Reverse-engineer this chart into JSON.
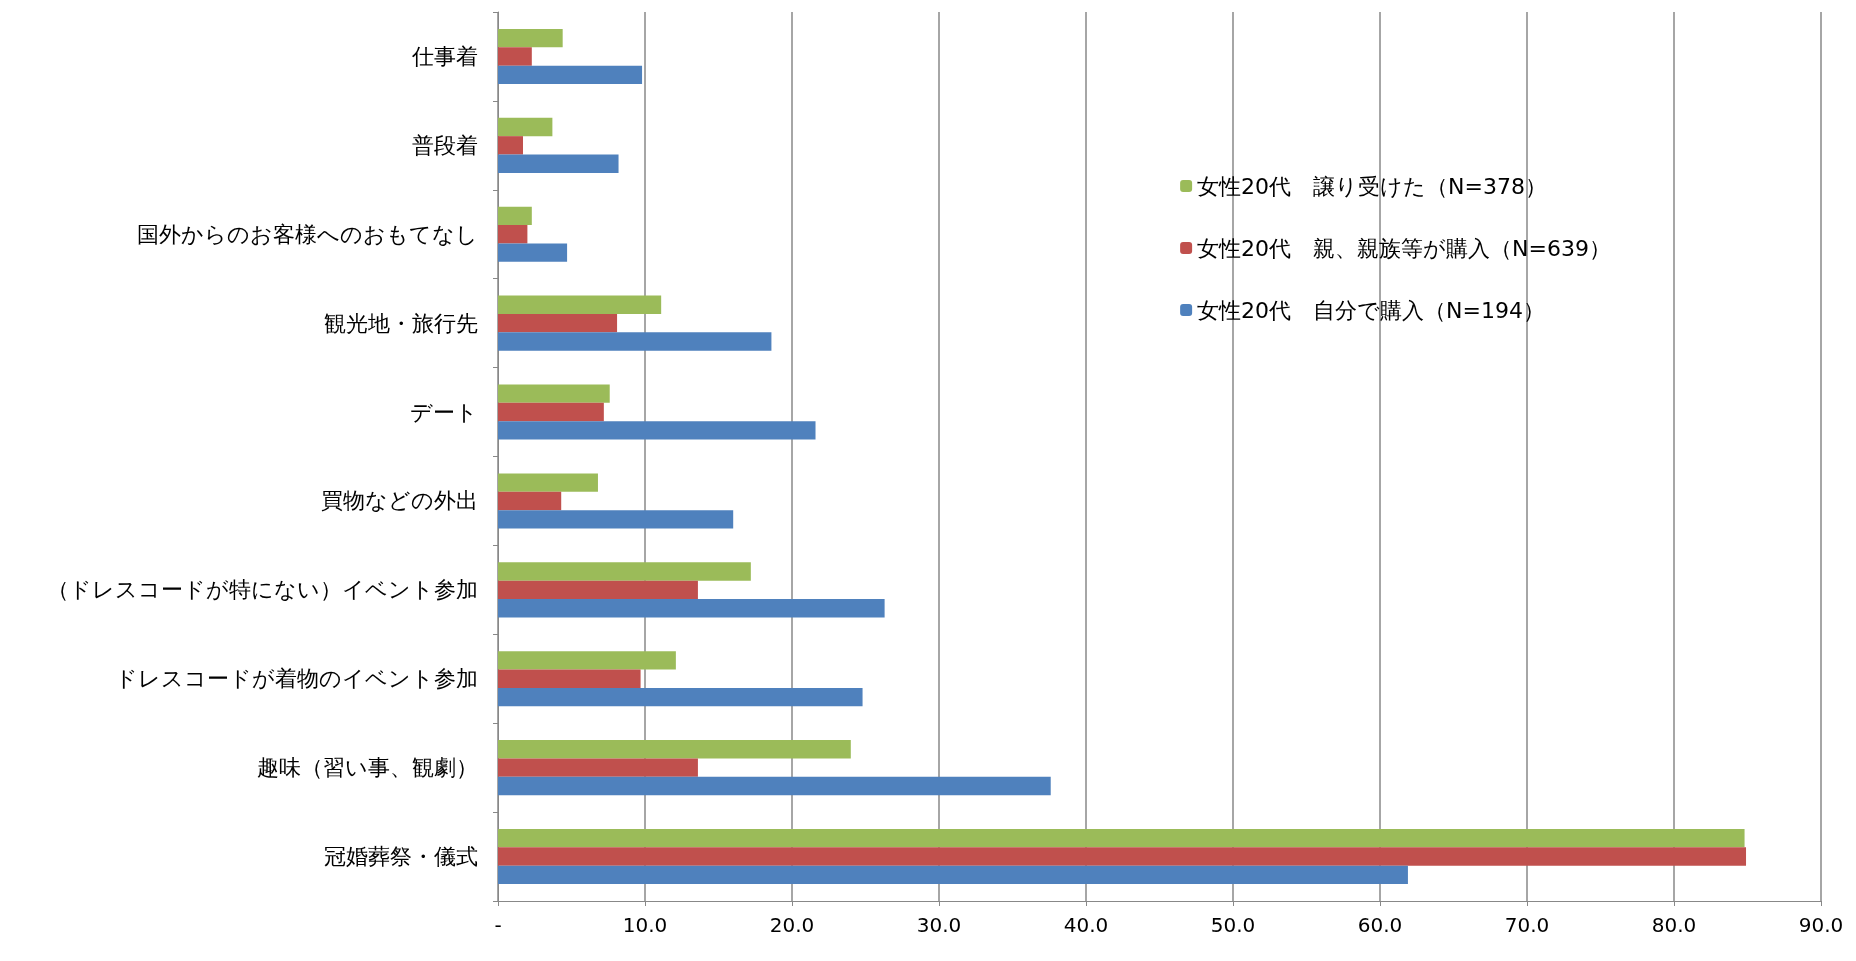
{
  "chart_data": {
    "type": "bar",
    "orientation": "horizontal",
    "categories": [
      "仕事着",
      "普段着",
      "国外からのお客様へのおもてなし",
      "観光地・旅行先",
      "デート",
      "買物などの外出",
      "（ドレスコードが特にない）イベント参加",
      "ドレスコードが着物のイベント参加",
      "趣味（習い事、観劇）",
      "冠婚葬祭・儀式"
    ],
    "series": [
      {
        "name": "女性20代　譲り受けた（N=378）",
        "color": "#9bbb59",
        "values": [
          4.4,
          3.7,
          2.3,
          11.1,
          7.6,
          6.8,
          17.2,
          12.1,
          24.0,
          84.8
        ]
      },
      {
        "name": "女性20代　親、親族等が購入（N=639）",
        "color": "#c0504d",
        "values": [
          2.3,
          1.7,
          2.0,
          8.1,
          7.2,
          4.3,
          13.6,
          9.7,
          13.6,
          84.9
        ]
      },
      {
        "name": "女性20代　自分で購入（N=194）",
        "color": "#4f81bd",
        "values": [
          9.8,
          8.2,
          4.7,
          18.6,
          21.6,
          16.0,
          26.3,
          24.8,
          37.6,
          61.9
        ]
      }
    ],
    "xlim": [
      0,
      90
    ],
    "xticks": [
      {
        "value": 0,
        "label": "-"
      },
      {
        "value": 10,
        "label": "10.0"
      },
      {
        "value": 20,
        "label": "20.0"
      },
      {
        "value": 30,
        "label": "30.0"
      },
      {
        "value": 40,
        "label": "40.0"
      },
      {
        "value": 50,
        "label": "50.0"
      },
      {
        "value": 60,
        "label": "60.0"
      },
      {
        "value": 70,
        "label": "70.0"
      },
      {
        "value": 80,
        "label": "80.0"
      },
      {
        "value": 90,
        "label": "90.0"
      }
    ],
    "grid": "x",
    "legend": "top right"
  }
}
